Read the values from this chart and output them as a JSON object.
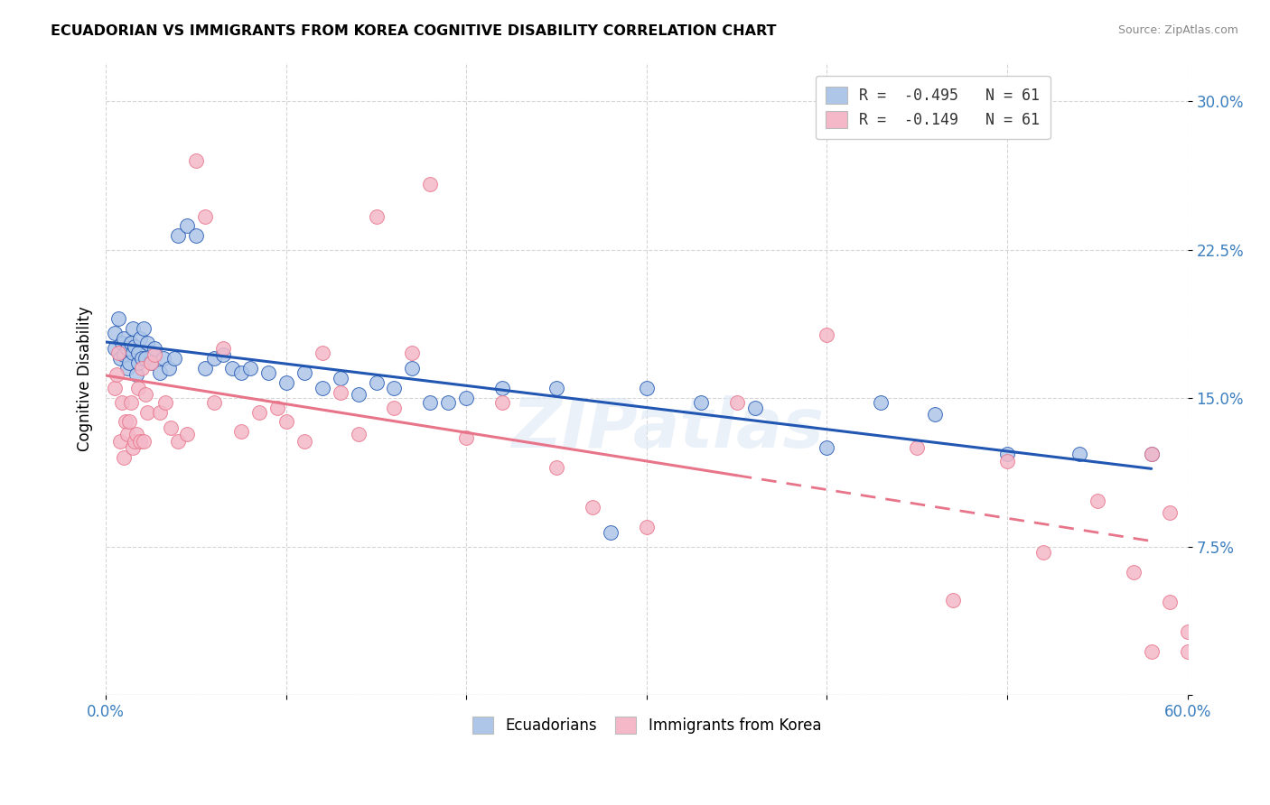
{
  "title": "ECUADORIAN VS IMMIGRANTS FROM KOREA COGNITIVE DISABILITY CORRELATION CHART",
  "source": "Source: ZipAtlas.com",
  "ylabel": "Cognitive Disability",
  "xlim": [
    0.0,
    0.6
  ],
  "ylim": [
    0.0,
    0.32
  ],
  "x_ticks": [
    0.0,
    0.1,
    0.2,
    0.3,
    0.4,
    0.5,
    0.6
  ],
  "x_tick_labels": [
    "0.0%",
    "",
    "",
    "",
    "",
    "",
    "60.0%"
  ],
  "y_ticks": [
    0.0,
    0.075,
    0.15,
    0.225,
    0.3
  ],
  "y_tick_labels": [
    "",
    "7.5%",
    "15.0%",
    "22.5%",
    "30.0%"
  ],
  "legend1_label": "R =  -0.495   N = 61",
  "legend2_label": "R =  -0.149   N = 61",
  "ecuadorian_color": "#aec6e8",
  "korea_color": "#f4b8c8",
  "trendline_ecuador_color": "#2156b2",
  "trendline_korea_color": "#e8748a",
  "watermark": "ZIPatlas",
  "legend_bottom_label1": "Ecuadorians",
  "legend_bottom_label2": "Immigrants from Korea",
  "ecuador_x": [
    0.005,
    0.005,
    0.007,
    0.008,
    0.009,
    0.01,
    0.01,
    0.012,
    0.012,
    0.013,
    0.014,
    0.015,
    0.015,
    0.016,
    0.017,
    0.018,
    0.018,
    0.019,
    0.02,
    0.021,
    0.022,
    0.023,
    0.025,
    0.027,
    0.03,
    0.032,
    0.035,
    0.038,
    0.04,
    0.045,
    0.05,
    0.055,
    0.06,
    0.065,
    0.07,
    0.075,
    0.08,
    0.09,
    0.1,
    0.11,
    0.12,
    0.13,
    0.14,
    0.15,
    0.16,
    0.17,
    0.18,
    0.19,
    0.2,
    0.22,
    0.25,
    0.28,
    0.3,
    0.33,
    0.36,
    0.4,
    0.43,
    0.46,
    0.5,
    0.54,
    0.58
  ],
  "ecuador_y": [
    0.175,
    0.183,
    0.19,
    0.17,
    0.178,
    0.172,
    0.18,
    0.165,
    0.175,
    0.168,
    0.178,
    0.185,
    0.173,
    0.176,
    0.162,
    0.168,
    0.173,
    0.18,
    0.17,
    0.185,
    0.17,
    0.178,
    0.168,
    0.175,
    0.163,
    0.17,
    0.165,
    0.17,
    0.232,
    0.237,
    0.232,
    0.165,
    0.17,
    0.172,
    0.165,
    0.163,
    0.165,
    0.163,
    0.158,
    0.163,
    0.155,
    0.16,
    0.152,
    0.158,
    0.155,
    0.165,
    0.148,
    0.148,
    0.15,
    0.155,
    0.155,
    0.082,
    0.155,
    0.148,
    0.145,
    0.125,
    0.148,
    0.142,
    0.122,
    0.122,
    0.122
  ],
  "korea_x": [
    0.005,
    0.006,
    0.007,
    0.008,
    0.009,
    0.01,
    0.011,
    0.012,
    0.013,
    0.014,
    0.015,
    0.016,
    0.017,
    0.018,
    0.019,
    0.02,
    0.021,
    0.022,
    0.023,
    0.025,
    0.027,
    0.03,
    0.033,
    0.036,
    0.04,
    0.045,
    0.05,
    0.055,
    0.06,
    0.065,
    0.075,
    0.085,
    0.095,
    0.1,
    0.11,
    0.12,
    0.13,
    0.14,
    0.15,
    0.16,
    0.17,
    0.18,
    0.2,
    0.22,
    0.25,
    0.27,
    0.3,
    0.35,
    0.4,
    0.45,
    0.47,
    0.5,
    0.52,
    0.55,
    0.57,
    0.58,
    0.58,
    0.59,
    0.59,
    0.6,
    0.6
  ],
  "korea_y": [
    0.155,
    0.162,
    0.173,
    0.128,
    0.148,
    0.12,
    0.138,
    0.132,
    0.138,
    0.148,
    0.125,
    0.128,
    0.132,
    0.155,
    0.128,
    0.165,
    0.128,
    0.152,
    0.143,
    0.168,
    0.172,
    0.143,
    0.148,
    0.135,
    0.128,
    0.132,
    0.27,
    0.242,
    0.148,
    0.175,
    0.133,
    0.143,
    0.145,
    0.138,
    0.128,
    0.173,
    0.153,
    0.132,
    0.242,
    0.145,
    0.173,
    0.258,
    0.13,
    0.148,
    0.115,
    0.095,
    0.085,
    0.148,
    0.182,
    0.125,
    0.048,
    0.118,
    0.072,
    0.098,
    0.062,
    0.022,
    0.122,
    0.092,
    0.047,
    0.032,
    0.022
  ],
  "korea_trend_x_end": 0.58,
  "ecuador_trend_x_end": 0.58
}
